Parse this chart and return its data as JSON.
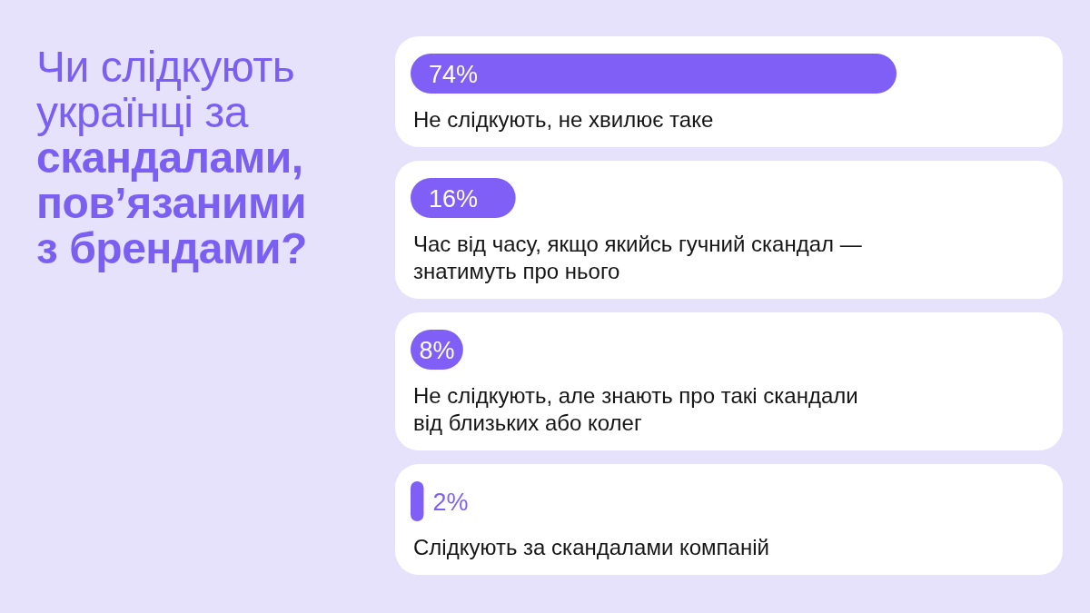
{
  "chart_data": {
    "type": "bar",
    "orientation": "horizontal",
    "title": "Чи слідкують українці за скандалами, пов’язаними з брендами?",
    "categories": [
      "Не слідкують, не хвилює таке",
      "Час від часу, якщо якийсь гучний скандал — знатимуть про нього",
      "Не слідкують, але знають про такі скандали від близьких або колег",
      "Слідкують за скандалами компаній"
    ],
    "values": [
      74,
      16,
      8,
      2
    ],
    "color": "#7f5ff5",
    "value_labels": [
      "74%",
      "16%",
      "8%",
      "2%"
    ]
  }
}
